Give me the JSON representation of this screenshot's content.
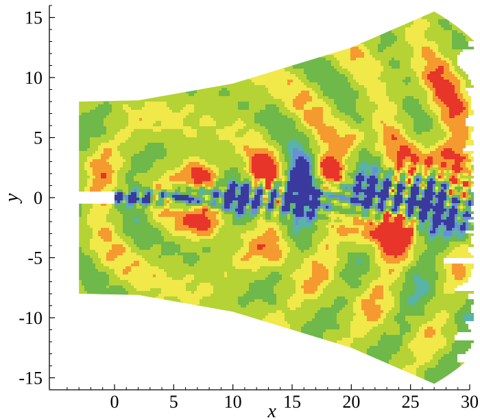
{
  "chart_data": {
    "type": "heatmap",
    "title": "",
    "xlabel": "x",
    "ylabel": "y",
    "xlim": [
      -5.5,
      30
    ],
    "ylim": [
      -16,
      16
    ],
    "x_ticks": [
      0,
      5,
      10,
      15,
      20,
      25,
      30
    ],
    "y_ticks": [
      -15,
      -10,
      -5,
      0,
      5,
      10,
      15
    ],
    "grid": false,
    "legend": "none",
    "domain": {
      "nozzle_exit_x": 0,
      "nozzle_half_width": 0.5,
      "inlet_x": -3,
      "inlet_y_range": [
        -8,
        8
      ],
      "outlet_x": 30,
      "outlet_y_range": [
        -15.8,
        15.8
      ],
      "upper_boundary": [
        [
          -3,
          8
        ],
        [
          2,
          8.1
        ],
        [
          10,
          9.5
        ],
        [
          20,
          12.5
        ],
        [
          27,
          15.5
        ]
      ],
      "lower_boundary": [
        [
          -3,
          -8
        ],
        [
          2,
          -8.1
        ],
        [
          10,
          -9.5
        ],
        [
          20,
          -12.5
        ],
        [
          27,
          -15.5
        ]
      ]
    },
    "contour_levels": [
      {
        "level": 1,
        "color": "#3a3a9e"
      },
      {
        "level": 2,
        "color": "#6a8fd8"
      },
      {
        "level": 3,
        "color": "#59b3a6"
      },
      {
        "level": 4,
        "color": "#6fb84a"
      },
      {
        "level": 5,
        "color": "#b5d335"
      },
      {
        "level": 6,
        "color": "#f1e84a"
      },
      {
        "level": 7,
        "color": "#f59a2f"
      },
      {
        "level": 8,
        "color": "#e8352a"
      }
    ]
  }
}
